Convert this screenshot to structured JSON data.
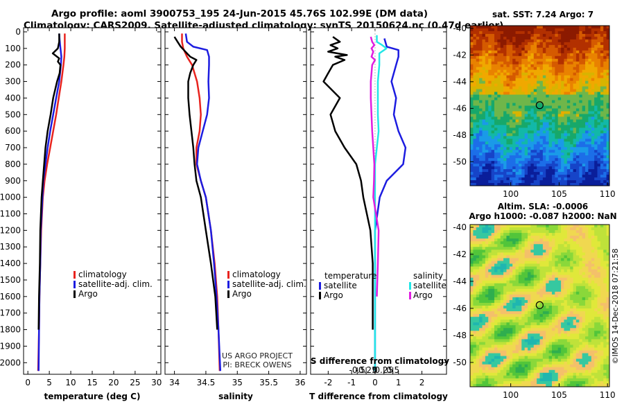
{
  "header": {
    "line1": "Argo profile: aoml 3900753_195 24-Jun-2015 45.76S 102.99E (DM data)",
    "line2": "Climatology: CARS2009. Satellite-adjusted climatology: synTS_20150624.nc (0.47d earlier)"
  },
  "colors": {
    "climatology": "#e8231e",
    "satellite": "#1c1ce0",
    "argo": "#000000",
    "cyan": "#22e6e6",
    "magenta": "#e01ee0"
  },
  "depth_axis": {
    "ticks": [
      0,
      100,
      200,
      300,
      400,
      500,
      600,
      700,
      800,
      900,
      1000,
      1100,
      1200,
      1300,
      1400,
      1500,
      1600,
      1700,
      1800,
      1900,
      2000
    ],
    "labels": [
      "0",
      "100",
      "200",
      "300",
      "400",
      "500",
      "600",
      "700",
      "800",
      "900",
      "1000",
      "1100",
      "1200",
      "1300",
      "1400",
      "1500",
      "1600",
      "1700",
      "1800",
      "1900",
      "2000"
    ]
  },
  "chart_data": [
    {
      "type": "line",
      "name": "temperature-panel",
      "xlabel": "temperature (deg C)",
      "xlim": [
        -1,
        31
      ],
      "ylim": [
        2070,
        -25
      ],
      "xticks": [
        0,
        5,
        10,
        15,
        20,
        25,
        30
      ],
      "xtick_labels": [
        "0",
        "5",
        "10",
        "15",
        "20",
        "25",
        "30"
      ],
      "legend": [
        "climatology",
        "satellite-adj. clim.",
        "Argo"
      ],
      "series": [
        {
          "name": "climatology",
          "depth": [
            10,
            50,
            100,
            150,
            200,
            300,
            400,
            500,
            600,
            700,
            800,
            900,
            1000,
            1200,
            1400,
            1600,
            1800,
            2050
          ],
          "value": [
            8.6,
            8.6,
            8.6,
            8.5,
            8.3,
            7.8,
            7.2,
            6.6,
            5.9,
            5.2,
            4.5,
            3.9,
            3.5,
            3.1,
            2.9,
            2.7,
            2.6,
            2.4
          ]
        },
        {
          "name": "satellite-adj. clim.",
          "depth": [
            10,
            50,
            100,
            150,
            200,
            300,
            400,
            500,
            600,
            700,
            800,
            900,
            1000,
            1200,
            1400,
            1600,
            1800,
            2050
          ],
          "value": [
            7.3,
            7.4,
            7.6,
            7.8,
            7.7,
            7.3,
            6.6,
            5.9,
            5.2,
            4.6,
            4.1,
            3.6,
            3.4,
            3.0,
            2.9,
            2.7,
            2.6,
            2.5
          ]
        },
        {
          "name": "Argo",
          "depth": [
            10,
            60,
            100,
            130,
            160,
            180,
            200,
            250,
            300,
            400,
            500,
            600,
            700,
            800,
            900,
            1000,
            1200,
            1400,
            1600,
            1800
          ],
          "value": [
            7.3,
            7.3,
            7.0,
            5.8,
            7.3,
            7.0,
            7.6,
            7.4,
            6.8,
            5.9,
            5.3,
            4.6,
            4.1,
            3.8,
            3.5,
            3.2,
            2.9,
            2.8,
            2.6,
            2.5
          ]
        }
      ]
    },
    {
      "type": "line",
      "name": "salinity-panel",
      "xlabel": "salinity",
      "xlim": [
        33.85,
        36.1
      ],
      "ylim": [
        2070,
        -25
      ],
      "xticks": [
        34,
        34.5,
        35,
        35.5,
        36
      ],
      "xtick_labels": [
        "34",
        "34.5",
        "35",
        "35.5",
        "36"
      ],
      "legend": [
        "climatology",
        "satellite-adj. clim.",
        "Argo"
      ],
      "series": [
        {
          "name": "climatology",
          "depth": [
            10,
            60,
            100,
            150,
            200,
            300,
            400,
            500,
            600,
            700,
            800,
            900,
            1000,
            1200,
            1400,
            1600,
            1800,
            2050
          ],
          "value": [
            34.12,
            34.12,
            34.14,
            34.2,
            34.28,
            34.36,
            34.4,
            34.42,
            34.4,
            34.35,
            34.35,
            34.42,
            34.5,
            34.58,
            34.64,
            34.68,
            34.7,
            34.72
          ]
        },
        {
          "name": "satellite-adj. clim.",
          "depth": [
            10,
            60,
            90,
            110,
            150,
            200,
            300,
            400,
            500,
            600,
            700,
            800,
            900,
            1000,
            1200,
            1400,
            1600,
            1800,
            2050
          ],
          "value": [
            34.18,
            34.2,
            34.3,
            34.52,
            34.55,
            34.55,
            34.54,
            34.55,
            34.52,
            34.45,
            34.38,
            34.36,
            34.42,
            34.5,
            34.58,
            34.63,
            34.67,
            34.7,
            34.73
          ]
        },
        {
          "name": "Argo",
          "depth": [
            30,
            60,
            90,
            110,
            130,
            150,
            170,
            200,
            250,
            300,
            400,
            500,
            600,
            700,
            800,
            900,
            1000,
            1200,
            1400,
            1600,
            1800
          ],
          "value": [
            34.0,
            34.05,
            34.1,
            34.15,
            34.2,
            34.25,
            34.35,
            34.3,
            34.25,
            34.22,
            34.22,
            34.24,
            34.27,
            34.3,
            34.32,
            34.35,
            34.42,
            34.5,
            34.58,
            34.65,
            34.68
          ]
        }
      ]
    },
    {
      "type": "line",
      "name": "difference-panel",
      "xlabel": "T difference from climatology",
      "xlim": [
        -2.75,
        3.05
      ],
      "ylim": [
        2070,
        -25
      ],
      "xticks": [
        -2,
        -1,
        0,
        1,
        2
      ],
      "xtick_labels": [
        "-2",
        "-1",
        "0",
        "1",
        "2"
      ],
      "s_axis_label": "S difference from climatology",
      "s_ticks": [
        -0.5,
        -0.25,
        0,
        0.25,
        0.5
      ],
      "s_tick_labels": [
        "-0.5",
        "-0.25",
        "0",
        "0.25",
        "0.5"
      ],
      "legend_temperature": {
        "title": "temperature",
        "items": [
          "satellite",
          "Argo"
        ]
      },
      "legend_salinity": {
        "title": "salinity",
        "items": [
          "satellite",
          "Argo"
        ]
      },
      "series": [
        {
          "name": "T satellite",
          "depth": [
            40,
            90,
            110,
            150,
            200,
            300,
            400,
            500,
            600,
            700,
            800,
            900,
            1000,
            1200,
            1400,
            1600,
            1800,
            2050
          ],
          "value": [
            0.4,
            0.5,
            1.0,
            1.0,
            0.9,
            0.7,
            0.9,
            0.8,
            1.0,
            1.3,
            1.2,
            0.5,
            0.2,
            0.0,
            0.0,
            0.0,
            0.0,
            0.0
          ]
        },
        {
          "name": "T Argo",
          "depth": [
            30,
            60,
            80,
            100,
            120,
            140,
            150,
            170,
            200,
            250,
            300,
            400,
            500,
            600,
            700,
            800,
            900,
            1000,
            1200,
            1400,
            1600,
            1800
          ],
          "value": [
            -1.8,
            -1.5,
            -1.9,
            -1.6,
            -2.0,
            -1.2,
            -1.7,
            -1.3,
            -1.8,
            -2.0,
            -2.2,
            -1.5,
            -1.9,
            -1.7,
            -1.3,
            -0.8,
            -0.6,
            -0.5,
            -0.2,
            -0.1,
            -0.1,
            -0.1
          ]
        },
        {
          "name": "S satellite",
          "depth": [
            20,
            60,
            80,
            100,
            130,
            200,
            300,
            400,
            500,
            600,
            700,
            800,
            900,
            1000,
            1200,
            1400,
            1600,
            1800,
            2050
          ],
          "value": [
            0.05,
            0.05,
            0.2,
            0.32,
            0.12,
            0.12,
            0.08,
            0.08,
            0.08,
            0.1,
            0.05,
            0.0,
            0.0,
            0.0,
            0.0,
            0.0,
            0.0,
            0.0,
            0.0
          ]
        },
        {
          "name": "S Argo",
          "depth": [
            30,
            60,
            80,
            100,
            120,
            150,
            170,
            200,
            300,
            400,
            500,
            600,
            700,
            800,
            900,
            1000,
            1200,
            1400,
            1600
          ],
          "value": [
            -0.12,
            -0.08,
            -0.02,
            -0.1,
            -0.05,
            -0.1,
            0.0,
            -0.08,
            -0.12,
            -0.12,
            -0.1,
            -0.08,
            -0.05,
            -0.02,
            -0.03,
            -0.05,
            0.1,
            0.08,
            0.05
          ]
        }
      ]
    },
    {
      "type": "heatmap",
      "name": "sst-map",
      "title": "sat. SST: 7.24 Argo: 7",
      "xticks": [
        100,
        105,
        110
      ],
      "xtick_labels": [
        "100",
        "105",
        "110"
      ],
      "yticks": [
        -40,
        -42,
        -44,
        -46,
        -48,
        -50
      ],
      "ytick_labels": [
        "-40",
        "-42",
        "-44",
        "-46",
        "-48",
        "-50"
      ],
      "xlim": [
        95.8,
        110.2
      ],
      "ylim": [
        -51.8,
        -39.8
      ],
      "argo_position": [
        102.99,
        -45.76
      ]
    },
    {
      "type": "heatmap",
      "name": "sla-map",
      "title_line1": "Altim. SLA: -0.0006",
      "title_line2": "Argo h1000: -0.087 h2000: NaN",
      "xticks": [
        100,
        105,
        110
      ],
      "xtick_labels": [
        "100",
        "105",
        "110"
      ],
      "yticks": [
        -40,
        -42,
        -44,
        -46,
        -48,
        -50
      ],
      "ytick_labels": [
        "-40",
        "-42",
        "-44",
        "-46",
        "-48",
        "-50"
      ],
      "xlim": [
        95.8,
        110.2
      ],
      "ylim": [
        -51.8,
        -39.8
      ],
      "argo_position": [
        102.99,
        -45.76
      ]
    }
  ],
  "credits": {
    "project": "US ARGO PROJECT",
    "pi": "PI: BRECK OWENS",
    "stamp": "©IMOS 14-Dec-2018 07:21:58"
  }
}
